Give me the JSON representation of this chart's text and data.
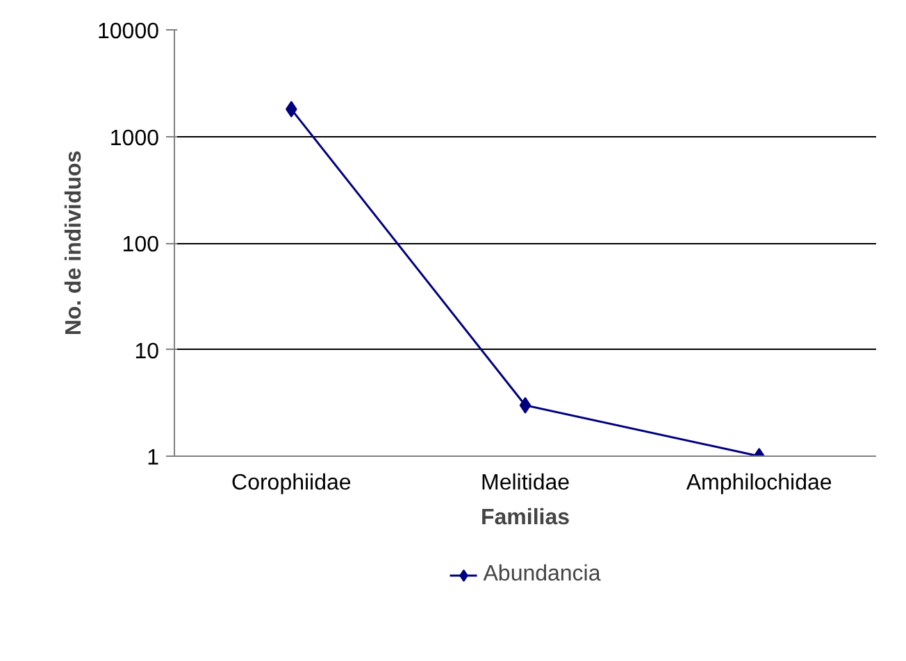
{
  "chart_data": {
    "type": "line",
    "xlabel": "Familias",
    "ylabel": "No. de individuos",
    "categories": [
      "Corophiidae",
      "Melitidae",
      "Amphilochidae"
    ],
    "series": [
      {
        "name": "Abundancia",
        "color": "#000080",
        "values": [
          1800,
          3,
          1
        ]
      }
    ],
    "ylim": [
      1,
      10000
    ],
    "yticks": [
      1,
      10,
      100,
      1000,
      10000
    ],
    "log": true,
    "grid": "y",
    "legend": "bottom",
    "marker": "diamond",
    "line_style": "solid"
  }
}
